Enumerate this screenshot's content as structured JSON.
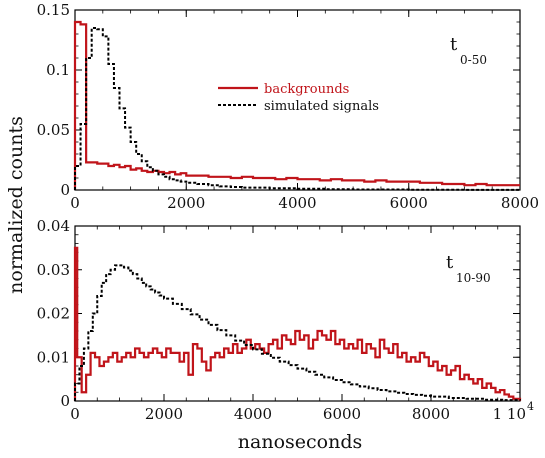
{
  "chart_data": [
    {
      "type": "line",
      "step": true,
      "ylabel": "normalized counts",
      "annotation_main": "t",
      "annotation_sub": "0-50",
      "xlim": [
        0,
        8000
      ],
      "ylim": [
        0,
        0.15
      ],
      "xticks": [
        0,
        2000,
        4000,
        6000,
        8000
      ],
      "yticks": [
        0,
        0.05,
        0.1,
        0.15
      ],
      "ytick_labels": [
        "0",
        "0.05",
        "0.1",
        "0.15"
      ],
      "legend": {
        "position": "center"
      },
      "series": [
        {
          "name": "backgrounds",
          "color": "#c0141a",
          "style": "solid",
          "points": [
            [
              0,
              0.14
            ],
            [
              100,
              0.138
            ],
            [
              200,
              0.023
            ],
            [
              300,
              0.023
            ],
            [
              400,
              0.022
            ],
            [
              500,
              0.022
            ],
            [
              600,
              0.02
            ],
            [
              700,
              0.021
            ],
            [
              800,
              0.019
            ],
            [
              900,
              0.02
            ],
            [
              1000,
              0.017
            ],
            [
              1100,
              0.018
            ],
            [
              1200,
              0.016
            ],
            [
              1300,
              0.015
            ],
            [
              1400,
              0.016
            ],
            [
              1500,
              0.015
            ],
            [
              1600,
              0.014
            ],
            [
              1700,
              0.015
            ],
            [
              1800,
              0.013
            ],
            [
              1900,
              0.014
            ],
            [
              2000,
              0.012
            ],
            [
              2200,
              0.012
            ],
            [
              2400,
              0.011
            ],
            [
              2600,
              0.011
            ],
            [
              2800,
              0.01
            ],
            [
              3000,
              0.011
            ],
            [
              3200,
              0.01
            ],
            [
              3400,
              0.01
            ],
            [
              3600,
              0.009
            ],
            [
              3800,
              0.01
            ],
            [
              4000,
              0.009
            ],
            [
              4200,
              0.009
            ],
            [
              4400,
              0.008
            ],
            [
              4600,
              0.009
            ],
            [
              4800,
              0.008
            ],
            [
              5000,
              0.008
            ],
            [
              5200,
              0.007
            ],
            [
              5400,
              0.008
            ],
            [
              5600,
              0.007
            ],
            [
              5800,
              0.007
            ],
            [
              6000,
              0.007
            ],
            [
              6200,
              0.006
            ],
            [
              6400,
              0.006
            ],
            [
              6600,
              0.005
            ],
            [
              6800,
              0.005
            ],
            [
              7000,
              0.004
            ],
            [
              7200,
              0.005
            ],
            [
              7400,
              0.004
            ],
            [
              7600,
              0.004
            ],
            [
              7800,
              0.004
            ],
            [
              8000,
              0.004
            ]
          ]
        },
        {
          "name": "simulated signals",
          "color": "#000000",
          "style": "dashed",
          "points": [
            [
              0,
              0.02
            ],
            [
              100,
              0.055
            ],
            [
              200,
              0.11
            ],
            [
              300,
              0.135
            ],
            [
              400,
              0.134
            ],
            [
              500,
              0.128
            ],
            [
              600,
              0.105
            ],
            [
              700,
              0.085
            ],
            [
              800,
              0.068
            ],
            [
              900,
              0.052
            ],
            [
              1000,
              0.04
            ],
            [
              1100,
              0.03
            ],
            [
              1200,
              0.024
            ],
            [
              1300,
              0.019
            ],
            [
              1400,
              0.016
            ],
            [
              1500,
              0.013
            ],
            [
              1600,
              0.011
            ],
            [
              1700,
              0.009
            ],
            [
              1800,
              0.008
            ],
            [
              1900,
              0.007
            ],
            [
              2000,
              0.006
            ],
            [
              2200,
              0.005
            ],
            [
              2400,
              0.004
            ],
            [
              2600,
              0.003
            ],
            [
              2800,
              0.0025
            ],
            [
              3000,
              0.002
            ],
            [
              3500,
              0.0015
            ],
            [
              4000,
              0.001
            ],
            [
              4500,
              0.0006
            ],
            [
              5000,
              0.0004
            ],
            [
              6000,
              0.0002
            ],
            [
              7000,
              0.0001
            ],
            [
              8000,
              0.0
            ]
          ]
        }
      ]
    },
    {
      "type": "line",
      "step": true,
      "xlabel": "nanoseconds",
      "annotation_main": "t",
      "annotation_sub": "10-90",
      "xlim": [
        0,
        10000
      ],
      "ylim": [
        0,
        0.04
      ],
      "xticks": [
        0,
        2000,
        4000,
        6000,
        8000,
        10000
      ],
      "xtick_labels": [
        "0",
        "2000",
        "4000",
        "6000",
        "8000",
        "1 10"
      ],
      "xtick_exponent": "4",
      "yticks": [
        0,
        0.01,
        0.02,
        0.03,
        0.04
      ],
      "ytick_labels": [
        "0",
        "0.01",
        "0.02",
        "0.03",
        "0.04"
      ],
      "series": [
        {
          "name": "backgrounds",
          "color": "#c0141a",
          "style": "solid",
          "points": [
            [
              0,
              0.035
            ],
            [
              50,
              0.01
            ],
            [
              150,
              0.002
            ],
            [
              250,
              0.006
            ],
            [
              350,
              0.011
            ],
            [
              450,
              0.01
            ],
            [
              550,
              0.008
            ],
            [
              650,
              0.009
            ],
            [
              750,
              0.01
            ],
            [
              850,
              0.011
            ],
            [
              950,
              0.009
            ],
            [
              1050,
              0.01
            ],
            [
              1150,
              0.011
            ],
            [
              1250,
              0.01
            ],
            [
              1350,
              0.012
            ],
            [
              1450,
              0.011
            ],
            [
              1550,
              0.01
            ],
            [
              1650,
              0.011
            ],
            [
              1750,
              0.012
            ],
            [
              1850,
              0.011
            ],
            [
              1950,
              0.01
            ],
            [
              2050,
              0.012
            ],
            [
              2150,
              0.011
            ],
            [
              2250,
              0.011
            ],
            [
              2350,
              0.009
            ],
            [
              2450,
              0.011
            ],
            [
              2550,
              0.006
            ],
            [
              2650,
              0.013
            ],
            [
              2750,
              0.012
            ],
            [
              2850,
              0.009
            ],
            [
              2950,
              0.007
            ],
            [
              3050,
              0.01
            ],
            [
              3150,
              0.011
            ],
            [
              3250,
              0.01
            ],
            [
              3350,
              0.012
            ],
            [
              3450,
              0.011
            ],
            [
              3550,
              0.013
            ],
            [
              3650,
              0.011
            ],
            [
              3750,
              0.012
            ],
            [
              3850,
              0.014
            ],
            [
              3950,
              0.012
            ],
            [
              4050,
              0.013
            ],
            [
              4150,
              0.012
            ],
            [
              4250,
              0.011
            ],
            [
              4350,
              0.013
            ],
            [
              4450,
              0.014
            ],
            [
              4550,
              0.012
            ],
            [
              4650,
              0.015
            ],
            [
              4750,
              0.014
            ],
            [
              4850,
              0.013
            ],
            [
              4950,
              0.016
            ],
            [
              5050,
              0.014
            ],
            [
              5150,
              0.015
            ],
            [
              5250,
              0.012
            ],
            [
              5350,
              0.014
            ],
            [
              5450,
              0.016
            ],
            [
              5550,
              0.015
            ],
            [
              5650,
              0.014
            ],
            [
              5750,
              0.016
            ],
            [
              5850,
              0.013
            ],
            [
              5950,
              0.014
            ],
            [
              6050,
              0.012
            ],
            [
              6150,
              0.013
            ],
            [
              6250,
              0.012
            ],
            [
              6350,
              0.014
            ],
            [
              6450,
              0.011
            ],
            [
              6550,
              0.013
            ],
            [
              6650,
              0.012
            ],
            [
              6750,
              0.01
            ],
            [
              6850,
              0.014
            ],
            [
              6950,
              0.012
            ],
            [
              7050,
              0.011
            ],
            [
              7150,
              0.013
            ],
            [
              7250,
              0.01
            ],
            [
              7350,
              0.011
            ],
            [
              7450,
              0.009
            ],
            [
              7550,
              0.01
            ],
            [
              7650,
              0.009
            ],
            [
              7750,
              0.011
            ],
            [
              7850,
              0.01
            ],
            [
              7950,
              0.008
            ],
            [
              8050,
              0.009
            ],
            [
              8150,
              0.007
            ],
            [
              8250,
              0.008
            ],
            [
              8350,
              0.006
            ],
            [
              8450,
              0.007
            ],
            [
              8550,
              0.008
            ],
            [
              8650,
              0.005
            ],
            [
              8750,
              0.006
            ],
            [
              8850,
              0.005
            ],
            [
              8950,
              0.004
            ],
            [
              9050,
              0.005
            ],
            [
              9150,
              0.003
            ],
            [
              9250,
              0.004
            ],
            [
              9350,
              0.003
            ],
            [
              9450,
              0.002
            ],
            [
              9550,
              0.0025
            ],
            [
              9650,
              0.0015
            ],
            [
              9750,
              0.001
            ],
            [
              9850,
              0.0005
            ],
            [
              10000,
              0.0
            ]
          ]
        },
        {
          "name": "simulated signals",
          "color": "#000000",
          "style": "dashed",
          "points": [
            [
              0,
              0.004
            ],
            [
              100,
              0.008
            ],
            [
              200,
              0.012
            ],
            [
              300,
              0.016
            ],
            [
              400,
              0.02
            ],
            [
              500,
              0.024
            ],
            [
              600,
              0.027
            ],
            [
              700,
              0.029
            ],
            [
              800,
              0.03
            ],
            [
              900,
              0.031
            ],
            [
              1000,
              0.031
            ],
            [
              1100,
              0.0305
            ],
            [
              1200,
              0.0298
            ],
            [
              1300,
              0.029
            ],
            [
              1400,
              0.028
            ],
            [
              1500,
              0.027
            ],
            [
              1600,
              0.0262
            ],
            [
              1700,
              0.0255
            ],
            [
              1800,
              0.0248
            ],
            [
              1900,
              0.0241
            ],
            [
              2000,
              0.0234
            ],
            [
              2200,
              0.0222
            ],
            [
              2400,
              0.021
            ],
            [
              2600,
              0.0198
            ],
            [
              2800,
              0.0186
            ],
            [
              3000,
              0.0174
            ],
            [
              3200,
              0.0162
            ],
            [
              3400,
              0.015
            ],
            [
              3600,
              0.0138
            ],
            [
              3800,
              0.0128
            ],
            [
              4000,
              0.0118
            ],
            [
              4200,
              0.0108
            ],
            [
              4400,
              0.0099
            ],
            [
              4600,
              0.009
            ],
            [
              4800,
              0.0082
            ],
            [
              5000,
              0.0074
            ],
            [
              5200,
              0.0067
            ],
            [
              5400,
              0.006
            ],
            [
              5600,
              0.0054
            ],
            [
              5800,
              0.0048
            ],
            [
              6000,
              0.0043
            ],
            [
              6200,
              0.0038
            ],
            [
              6400,
              0.0033
            ],
            [
              6600,
              0.0029
            ],
            [
              6800,
              0.0025
            ],
            [
              7000,
              0.0022
            ],
            [
              7200,
              0.0019
            ],
            [
              7400,
              0.0016
            ],
            [
              7600,
              0.0014
            ],
            [
              7800,
              0.0012
            ],
            [
              8000,
              0.001
            ],
            [
              8400,
              0.0007
            ],
            [
              8800,
              0.0005
            ],
            [
              9200,
              0.0003
            ],
            [
              9600,
              0.0002
            ],
            [
              10000,
              0.0001
            ]
          ]
        }
      ]
    }
  ]
}
